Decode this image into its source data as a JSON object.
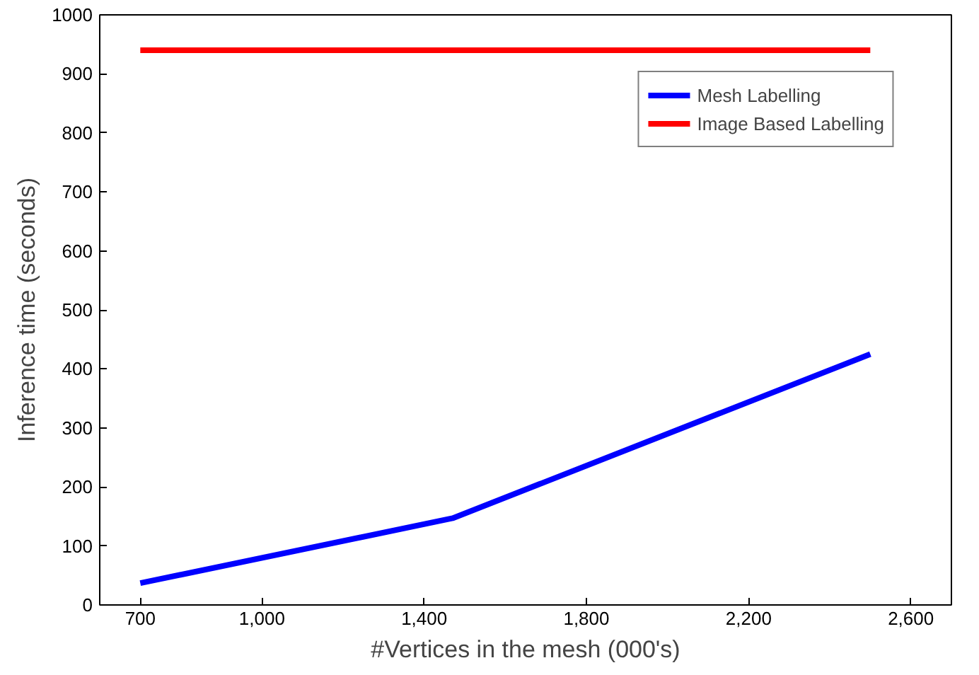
{
  "chart_data": {
    "type": "line",
    "xlabel": "#Vertices in the mesh (000's)",
    "ylabel": "Inference time (seconds)",
    "xlim": [
      600,
      2700
    ],
    "xticks": [
      {
        "value": 700,
        "label": "700"
      },
      {
        "value": 1000,
        "label": "1,000"
      },
      {
        "value": 1400,
        "label": "1,400"
      },
      {
        "value": 1800,
        "label": "1,800"
      },
      {
        "value": 2200,
        "label": "2,200"
      },
      {
        "value": 2600,
        "label": "2,600"
      }
    ],
    "ylim": [
      0,
      1000
    ],
    "yticks": [
      0,
      100,
      200,
      300,
      400,
      500,
      600,
      700,
      800,
      900,
      1000
    ],
    "grid": false,
    "legend": "top right",
    "series": [
      {
        "name": "Mesh Labelling",
        "color": "#0000ff",
        "x": [
          700,
          1470,
          2500
        ],
        "values": [
          37,
          147,
          425
        ]
      },
      {
        "name": "Image Based Labelling",
        "color": "#ff0000",
        "x": [
          700,
          1470,
          2500
        ],
        "values": [
          940,
          940,
          940
        ]
      }
    ]
  }
}
